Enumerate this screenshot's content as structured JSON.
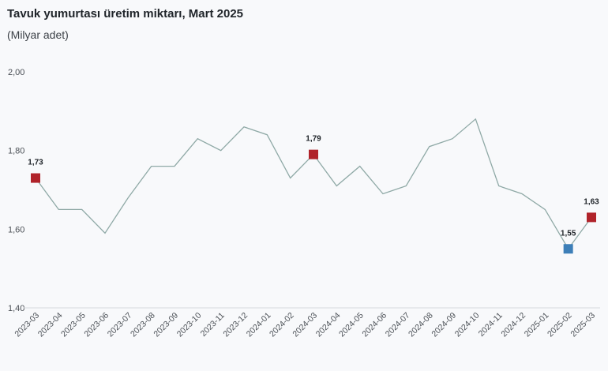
{
  "title": "Tavuk yumurtası üretim miktarı, Mart 2025",
  "subtitle": "(Milyar adet)",
  "colors": {
    "line": "#8fa9a6",
    "highlight": "#b0232a",
    "minimum": "#3d7fb8",
    "axis": "#d6d9dd",
    "background": "#f8f9fb"
  },
  "chart_data": {
    "type": "line",
    "title": "Tavuk yumurtası üretim miktarı, Mart 2025",
    "subtitle": "(Milyar adet)",
    "xlabel": "",
    "ylabel": "",
    "ylim": [
      1.4,
      2.0
    ],
    "y_ticks": [
      "1,40",
      "1,60",
      "1,80",
      "2,00"
    ],
    "y_tick_values": [
      1.4,
      1.6,
      1.8,
      2.0
    ],
    "grid": false,
    "categories": [
      "2023-03",
      "2023-04",
      "2023-05",
      "2023-06",
      "2023-07",
      "2023-08",
      "2023-09",
      "2023-10",
      "2023-11",
      "2023-12",
      "2024-01",
      "2024-02",
      "2024-03",
      "2024-04",
      "2024-05",
      "2024-06",
      "2024-07",
      "2024-08",
      "2024-09",
      "2024-10",
      "2024-11",
      "2024-12",
      "2025-01",
      "2025-02",
      "2025-03"
    ],
    "series": [
      {
        "values": [
          1.73,
          1.65,
          1.65,
          1.59,
          1.68,
          1.76,
          1.76,
          1.83,
          1.8,
          1.86,
          1.84,
          1.73,
          1.79,
          1.71,
          1.76,
          1.69,
          1.71,
          1.81,
          1.83,
          1.88,
          1.71,
          1.69,
          1.65,
          1.55,
          1.63
        ]
      }
    ],
    "markers": [
      {
        "category": "2023-03",
        "value": 1.73,
        "label": "1,73",
        "style": "highlight"
      },
      {
        "category": "2024-03",
        "value": 1.79,
        "label": "1,79",
        "style": "highlight"
      },
      {
        "category": "2025-02",
        "value": 1.55,
        "label": "1,55",
        "style": "minimum"
      },
      {
        "category": "2025-03",
        "value": 1.63,
        "label": "1,63",
        "style": "highlight"
      }
    ]
  }
}
